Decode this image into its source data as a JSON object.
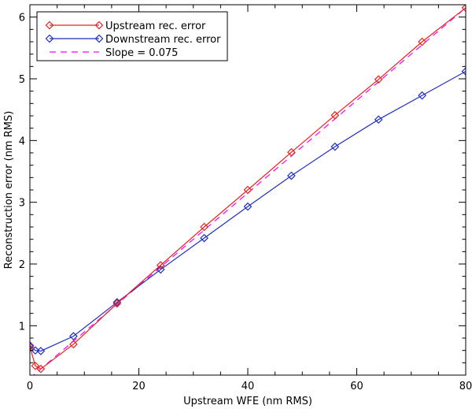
{
  "chart_data": {
    "type": "line",
    "title": "",
    "xlabel": "Upstream WFE (nm RMS)",
    "ylabel": "Reconstruction error (nm RMS)",
    "xlim": [
      0,
      80
    ],
    "ylim": [
      0.2,
      6.2
    ],
    "x_ticks": [
      0,
      20,
      40,
      60,
      80
    ],
    "y_ticks": [
      1,
      2,
      3,
      4,
      5,
      6
    ],
    "grid": false,
    "legend_position": "top-left",
    "series": [
      {
        "name": "Upstream rec. error",
        "color": "#e8201e",
        "style": "solid",
        "marker": "diamond",
        "x": [
          0,
          1,
          2,
          8,
          16,
          24,
          32,
          40,
          48,
          56,
          64,
          72,
          80
        ],
        "y": [
          0.66,
          0.35,
          0.3,
          0.7,
          1.36,
          1.98,
          2.6,
          3.2,
          3.81,
          4.41,
          4.99,
          5.6,
          6.15
        ]
      },
      {
        "name": "Downstream rec. error",
        "color": "#1f2fbf",
        "style": "solid",
        "marker": "diamond",
        "x": [
          0,
          1,
          2,
          8,
          16,
          24,
          32,
          40,
          48,
          56,
          64,
          72,
          80
        ],
        "y": [
          0.68,
          0.6,
          0.59,
          0.83,
          1.38,
          1.91,
          2.42,
          2.93,
          3.43,
          3.9,
          4.34,
          4.73,
          5.12
        ]
      },
      {
        "name": "Slope = 0.075",
        "color": "#ff00ff",
        "style": "dashed",
        "marker": "none",
        "x": [
          0,
          80
        ],
        "y": [
          0.15,
          6.15
        ]
      }
    ]
  }
}
